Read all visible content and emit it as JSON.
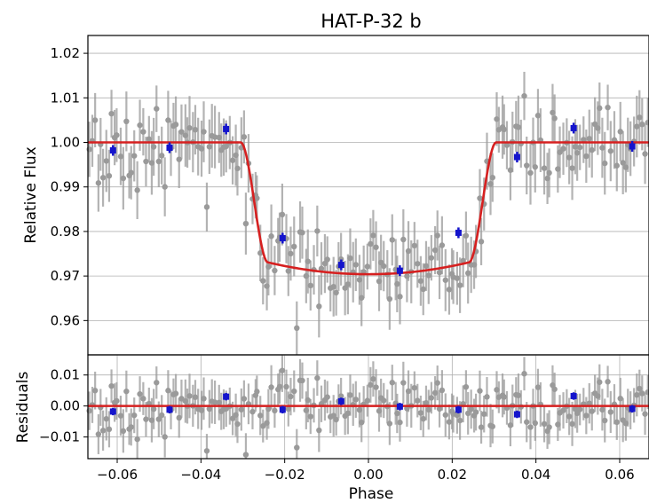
{
  "chart_data": [
    {
      "type": "scatter",
      "panel": "top",
      "title": "HAT-P-32 b",
      "xlabel": "",
      "ylabel": "Relative Flux",
      "xlim": [
        -0.067,
        0.067
      ],
      "ylim": [
        0.9523,
        1.024
      ],
      "yticks": [
        "0.96",
        "0.97",
        "0.98",
        "0.99",
        "1.00",
        "1.01",
        "1.02"
      ],
      "ytick_values": [
        0.96,
        0.97,
        0.98,
        0.99,
        1.0,
        1.01,
        1.02
      ],
      "grid": true,
      "colors": {
        "data": "#9a9a9a",
        "binned": "#1414cc",
        "model": "#d62020"
      },
      "model": {
        "name": "",
        "depth": 0.0296,
        "full_duration_half": 0.0305,
        "ingress_width": 0.0065
      },
      "binned": {
        "x": [
          -0.061,
          -0.0475,
          -0.034,
          -0.0205,
          -0.0065,
          0.0075,
          0.0215,
          0.0355,
          0.049,
          0.063
        ],
        "y": [
          0.9982,
          0.9988,
          1.003,
          0.9785,
          0.9725,
          0.9712,
          0.9797,
          0.9967,
          1.0032,
          0.9991
        ],
        "yerr": [
          0.0012,
          0.0012,
          0.0012,
          0.0012,
          0.0012,
          0.0012,
          0.0012,
          0.0012,
          0.0012,
          0.0012
        ]
      },
      "raw_point_count": 200,
      "raw_scatter_sigma": 0.0045,
      "raw_errorbar": 0.006
    },
    {
      "type": "scatter",
      "panel": "bottom",
      "xlabel": "Phase",
      "ylabel": "Residuals",
      "xlim": [
        -0.067,
        0.067
      ],
      "ylim": [
        -0.017,
        0.0165
      ],
      "xticks": [
        "−0.06",
        "−0.04",
        "−0.02",
        "0.00",
        "0.02",
        "0.04",
        "0.06"
      ],
      "xtick_values": [
        -0.06,
        -0.04,
        -0.02,
        0.0,
        0.02,
        0.04,
        0.06
      ],
      "yticks": [
        "−0.01",
        "0.00",
        "0.01"
      ],
      "ytick_values": [
        -0.01,
        0.0,
        0.01
      ],
      "grid": true,
      "binned": {
        "x": [
          -0.061,
          -0.0475,
          -0.034,
          -0.0205,
          -0.0065,
          0.0075,
          0.0215,
          0.0355,
          0.049,
          0.063
        ],
        "y": [
          -0.0018,
          -0.0012,
          0.003,
          -0.0012,
          0.0015,
          -0.0002,
          -0.0012,
          -0.0027,
          0.0032,
          -0.0009
        ],
        "yerr": [
          0.0012,
          0.0012,
          0.0012,
          0.0012,
          0.0012,
          0.0012,
          0.0012,
          0.0012,
          0.0012,
          0.0012
        ]
      },
      "zero_line": 0.0
    }
  ]
}
